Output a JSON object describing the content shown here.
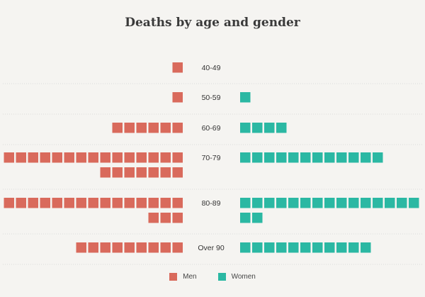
{
  "chart_data": {
    "type": "waffle",
    "title": "Deaths by age and gender",
    "categories": [
      "40-49",
      "50-59",
      "60-69",
      "70-79",
      "80-89",
      "Over 90"
    ],
    "series": [
      {
        "name": "Men",
        "color": "#d96a5c",
        "values": [
          1,
          1,
          6,
          22,
          18,
          9
        ]
      },
      {
        "name": "Women",
        "color": "#2bb8a3",
        "values": [
          0,
          1,
          4,
          12,
          17,
          11
        ]
      }
    ],
    "units_per_row_max": 15,
    "legend_position": "bottom-center"
  }
}
